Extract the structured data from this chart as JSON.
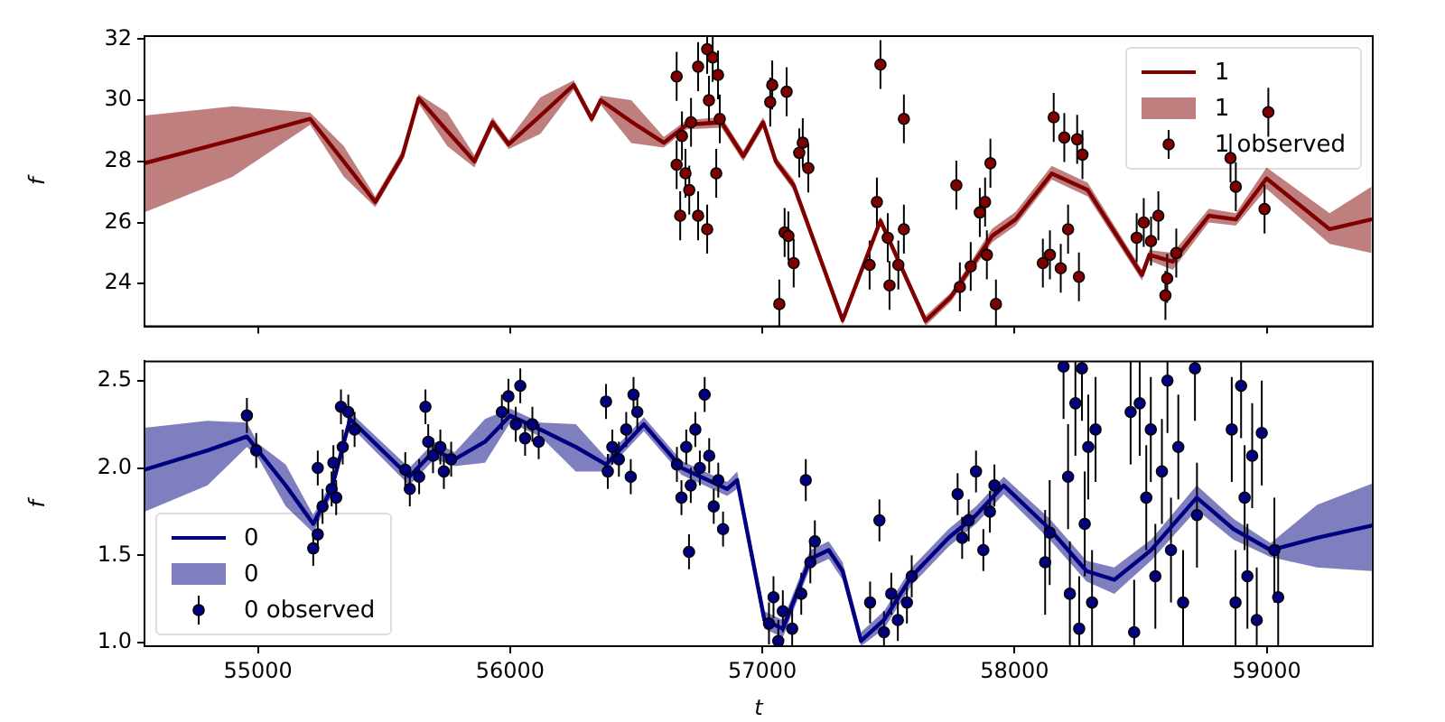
{
  "chart_data": [
    {
      "type": "line",
      "ylabel": "f",
      "xlim": [
        54550,
        59420
      ],
      "xticks": [
        55000,
        56000,
        57000,
        58000,
        59000
      ],
      "ylim": [
        22.6,
        32.1
      ],
      "yticks": [
        24,
        26,
        28,
        30,
        32
      ],
      "tick_labels": "y",
      "grid": false,
      "legend": "top right",
      "series": [
        {
          "name": "1",
          "type": "line",
          "color": "#800000",
          "line_style": "solid",
          "marker": "none",
          "x": [
            54550,
            54900,
            55207,
            55340,
            55465,
            55572,
            55637,
            55750,
            55858,
            55930,
            55994,
            56120,
            56252,
            56323,
            56359,
            56480,
            56609,
            56700,
            56838,
            56924,
            57003,
            57053,
            57124,
            57318,
            57468,
            57647,
            57747,
            57911,
            58004,
            58147,
            58290,
            58505,
            58534,
            58627,
            58770,
            58877,
            58999,
            59249,
            59414
          ],
          "values": [
            27.94,
            28.7,
            29.39,
            28.0,
            26.67,
            28.17,
            30.06,
            29.0,
            28.0,
            29.28,
            28.56,
            29.5,
            30.5,
            29.39,
            30.0,
            29.3,
            28.61,
            29.2,
            29.28,
            28.17,
            29.28,
            28.0,
            27.22,
            22.8,
            26.06,
            22.78,
            23.56,
            25.56,
            26.1,
            27.6,
            27.06,
            24.28,
            24.94,
            24.72,
            26.22,
            26.1,
            27.44,
            25.78,
            26.1
          ],
          "lower": [
            26.33,
            27.5,
            29.2,
            27.5,
            26.5,
            28.0,
            29.9,
            28.5,
            27.8,
            29.1,
            28.4,
            28.9,
            30.35,
            29.25,
            29.85,
            28.6,
            28.45,
            29.05,
            29.1,
            28.0,
            29.1,
            27.85,
            27.05,
            22.65,
            25.9,
            22.62,
            23.4,
            25.35,
            25.9,
            27.4,
            26.85,
            24.1,
            24.75,
            24.45,
            26.0,
            25.9,
            27.1,
            25.3,
            25.0
          ],
          "upper": [
            29.5,
            29.8,
            29.6,
            28.5,
            26.85,
            28.35,
            30.2,
            29.6,
            28.2,
            29.45,
            28.7,
            30.1,
            30.65,
            29.55,
            30.15,
            30.0,
            28.8,
            29.35,
            29.45,
            28.35,
            29.45,
            28.15,
            27.4,
            22.95,
            26.2,
            22.95,
            23.7,
            25.8,
            26.35,
            27.85,
            27.3,
            24.45,
            25.1,
            25.0,
            26.45,
            26.3,
            27.8,
            26.3,
            27.17
          ]
        },
        {
          "name": "1 observed",
          "type": "scatter",
          "color": "#800000",
          "marker": "circle",
          "x": [
            56660,
            56660,
            56674,
            56681,
            56695,
            56710,
            56717,
            56745,
            56745,
            56781,
            56781,
            56788,
            56803,
            56817,
            56824,
            56831,
            57031,
            57039,
            57067,
            57088,
            57096,
            57103,
            57124,
            57146,
            57160,
            57182,
            57425,
            57454,
            57468,
            57497,
            57504,
            57539,
            57561,
            57561,
            57769,
            57783,
            57826,
            57862,
            57883,
            57890,
            57904,
            57926,
            58112,
            58140,
            58155,
            58183,
            58197,
            58212,
            58248,
            58255,
            58269,
            58484,
            58512,
            58541,
            58570,
            58598,
            58605,
            58641,
            58856,
            58877,
            58991,
            59006
          ],
          "values": [
            30.78,
            27.89,
            26.22,
            28.83,
            27.61,
            27.06,
            29.28,
            26.22,
            31.1,
            31.67,
            25.78,
            30.0,
            31.4,
            27.61,
            30.83,
            29.39,
            29.94,
            30.5,
            23.33,
            25.67,
            30.28,
            25.56,
            24.67,
            28.28,
            28.61,
            27.78,
            24.61,
            26.67,
            31.17,
            25.5,
            23.94,
            24.61,
            29.39,
            25.78,
            27.22,
            23.89,
            24.56,
            26.33,
            26.67,
            24.94,
            27.94,
            23.33,
            24.67,
            24.94,
            29.44,
            24.5,
            28.78,
            25.78,
            28.72,
            24.22,
            28.22,
            25.5,
            26.0,
            25.39,
            26.22,
            23.61,
            24.17,
            25.0,
            28.11,
            27.17,
            26.44,
            29.61
          ],
          "errors": [
            0.8,
            0.8,
            0.8,
            0.8,
            0.8,
            0.8,
            0.8,
            0.8,
            0.8,
            [
              30.87,
              32.1
            ],
            0.8,
            0.8,
            [
              30.6,
              32.1
            ],
            0.8,
            0.8,
            0.8,
            0.8,
            0.8,
            [
              22.6,
              24.13
            ],
            0.8,
            0.8,
            0.8,
            0.8,
            0.8,
            0.8,
            0.8,
            0.8,
            0.8,
            0.8,
            0.8,
            0.8,
            0.8,
            0.8,
            0.8,
            0.8,
            0.8,
            0.8,
            0.8,
            0.8,
            0.8,
            0.8,
            [
              22.6,
              24.13
            ],
            0.8,
            0.8,
            0.8,
            0.8,
            0.8,
            0.8,
            0.8,
            0.8,
            0.8,
            0.8,
            0.8,
            0.8,
            0.8,
            0.8,
            0.8,
            0.8,
            0.8,
            0.8,
            0.8,
            0.8
          ]
        }
      ]
    },
    {
      "type": "line",
      "xlabel": "t",
      "ylabel": "f",
      "xlim": [
        54550,
        59420
      ],
      "xticks": [
        55000,
        56000,
        57000,
        58000,
        59000
      ],
      "ylim": [
        0.98,
        2.61
      ],
      "yticks": [
        {
          "value": 1,
          "label": "1.0"
        },
        {
          "value": 1.5,
          "label": "1.5"
        },
        {
          "value": 2,
          "label": "2.0"
        },
        {
          "value": 2.5,
          "label": "2.5"
        }
      ],
      "grid": false,
      "legend": "bottom left",
      "series": [
        {
          "name": "0",
          "type": "line",
          "color": "#000080",
          "line_style": "solid",
          "marker": "none",
          "x": [
            54550,
            54800,
            54956,
            55000,
            55110,
            55219,
            55292,
            55365,
            55600,
            55700,
            55780,
            55900,
            56000,
            56120,
            56260,
            56380,
            56530,
            56680,
            56860,
            56900,
            57008,
            57081,
            57190,
            57263,
            57318,
            57391,
            57482,
            57592,
            57738,
            57847,
            57957,
            58139,
            58285,
            58395,
            58541,
            58722,
            58868,
            59015,
            59200,
            59416
          ],
          "values": [
            1.99,
            2.1,
            2.18,
            2.1,
            1.9,
            1.68,
            1.88,
            2.28,
            1.95,
            2.1,
            2.05,
            2.15,
            2.3,
            2.22,
            2.12,
            2.02,
            2.25,
            2.0,
            1.88,
            1.93,
            1.13,
            1.08,
            1.48,
            1.53,
            1.41,
            1.01,
            1.13,
            1.38,
            1.6,
            1.73,
            1.9,
            1.65,
            1.41,
            1.36,
            1.53,
            1.83,
            1.65,
            1.53,
            1.6,
            1.67
          ],
          "lower": [
            1.75,
            1.9,
            2.12,
            2.06,
            1.78,
            1.63,
            1.84,
            2.24,
            1.9,
            2.05,
            2.01,
            2.03,
            2.26,
            2.18,
            1.98,
            1.98,
            2.21,
            1.96,
            1.84,
            1.88,
            1.08,
            1.03,
            1.43,
            1.48,
            1.36,
            0.98,
            1.08,
            1.33,
            1.55,
            1.68,
            1.85,
            1.59,
            1.35,
            1.28,
            1.47,
            1.76,
            1.59,
            1.49,
            1.43,
            1.41
          ],
          "upper": [
            2.23,
            2.27,
            2.26,
            2.14,
            2.02,
            1.73,
            1.92,
            2.32,
            2.0,
            2.15,
            2.09,
            2.28,
            2.34,
            2.26,
            2.25,
            2.06,
            2.29,
            2.04,
            1.92,
            1.98,
            1.18,
            1.13,
            1.53,
            1.58,
            1.46,
            1.06,
            1.18,
            1.43,
            1.65,
            1.78,
            1.95,
            1.71,
            1.47,
            1.43,
            1.59,
            1.9,
            1.71,
            1.57,
            1.79,
            1.91
          ]
        },
        {
          "name": "0 observed",
          "type": "scatter",
          "color": "#000080",
          "marker": "circle",
          "x": [
            54956,
            54993,
            55219,
            55237,
            55237,
            55256,
            55292,
            55299,
            55310,
            55329,
            55336,
            55358,
            55383,
            55584,
            55602,
            55639,
            55664,
            55675,
            55694,
            55723,
            55737,
            55766,
            55967,
            55993,
            56022,
            56040,
            56059,
            56088,
            56113,
            56380,
            56387,
            56405,
            56431,
            56460,
            56478,
            56489,
            56504,
            56661,
            56679,
            56698,
            56709,
            56716,
            56734,
            56752,
            56771,
            56789,
            56807,
            56825,
            56844,
            57026,
            57044,
            57063,
            57081,
            57118,
            57154,
            57172,
            57190,
            57208,
            57427,
            57464,
            57482,
            57511,
            57537,
            57573,
            57592,
            57774,
            57792,
            57818,
            57847,
            57876,
            57902,
            57920,
            58121,
            58139,
            58194,
            58212,
            58219,
            58241,
            58256,
            58267,
            58278,
            58292,
            58307,
            58321,
            58460,
            58474,
            58496,
            58522,
            58540,
            58558,
            58584,
            58606,
            58620,
            58649,
            58668,
            58715,
            58723,
            58861,
            58876,
            58898,
            58912,
            58923,
            58942,
            58960,
            58980,
            59030,
            59045
          ],
          "values": [
            2.3,
            2.1,
            1.54,
            1.62,
            2.0,
            1.78,
            1.88,
            2.03,
            1.83,
            2.35,
            2.12,
            2.32,
            2.22,
            1.99,
            1.88,
            1.95,
            2.35,
            2.15,
            2.07,
            2.12,
            1.98,
            2.05,
            2.32,
            2.41,
            2.25,
            2.47,
            2.17,
            2.25,
            2.15,
            2.38,
            1.98,
            2.12,
            2.05,
            2.22,
            1.95,
            2.42,
            2.32,
            2.02,
            1.83,
            2.12,
            1.52,
            1.9,
            2.22,
            2.0,
            2.42,
            2.07,
            1.78,
            1.93,
            1.65,
            1.11,
            1.26,
            1.01,
            1.18,
            1.08,
            1.28,
            1.93,
            1.46,
            1.58,
            1.23,
            1.7,
            1.06,
            1.28,
            1.13,
            1.23,
            1.38,
            1.85,
            1.6,
            1.7,
            1.98,
            1.53,
            1.75,
            1.9,
            1.46,
            1.63,
            2.58,
            1.95,
            1.28,
            2.37,
            1.08,
            2.57,
            1.68,
            2.12,
            1.23,
            2.22,
            2.32,
            1.06,
            2.37,
            1.83,
            2.22,
            1.38,
            1.98,
            2.5,
            1.53,
            2.12,
            1.23,
            2.57,
            1.73,
            2.22,
            1.23,
            2.47,
            1.83,
            1.38,
            2.07,
            1.13,
            2.2,
            1.53,
            1.26
          ],
          "errors": [
            0.1,
            0.1,
            0.1,
            0.1,
            0.1,
            0.1,
            0.1,
            0.1,
            0.1,
            0.1,
            0.1,
            0.1,
            0.1,
            0.1,
            0.1,
            0.1,
            0.1,
            0.1,
            0.1,
            0.1,
            0.1,
            0.1,
            0.1,
            0.1,
            0.1,
            0.1,
            0.1,
            0.1,
            0.1,
            0.1,
            0.1,
            0.1,
            0.1,
            0.1,
            0.1,
            0.1,
            0.1,
            0.1,
            0.1,
            0.1,
            0.1,
            0.1,
            0.1,
            0.1,
            0.1,
            0.1,
            0.1,
            0.1,
            0.1,
            0.12,
            0.12,
            [
              0.98,
              1.13
            ],
            0.12,
            [
              0.98,
              1.2
            ],
            0.12,
            0.12,
            0.12,
            0.12,
            0.12,
            0.12,
            [
              0.98,
              1.18
            ],
            0.12,
            0.12,
            0.12,
            0.12,
            0.12,
            0.12,
            0.12,
            0.12,
            0.12,
            0.12,
            0.12,
            0.3,
            0.3,
            [
              2.28,
              2.61
            ],
            0.3,
            0.3,
            [
              2.07,
              2.61
            ],
            [
              0.98,
              1.38
            ],
            [
              2.27,
              2.61
            ],
            0.3,
            0.3,
            [
              0.98,
              1.53
            ],
            0.3,
            [
              2.02,
              2.61
            ],
            [
              0.98,
              1.36
            ],
            [
              2.07,
              2.61
            ],
            0.3,
            0.3,
            0.3,
            0.3,
            [
              2.2,
              2.61
            ],
            0.3,
            0.3,
            [
              0.98,
              1.53
            ],
            [
              2.27,
              2.61
            ],
            0.3,
            0.3,
            [
              0.98,
              1.53
            ],
            [
              2.17,
              2.61
            ],
            0.3,
            0.3,
            0.3,
            [
              0.98,
              1.43
            ],
            0.3,
            0.3,
            [
              0.98,
              1.56
            ]
          ]
        }
      ]
    }
  ]
}
